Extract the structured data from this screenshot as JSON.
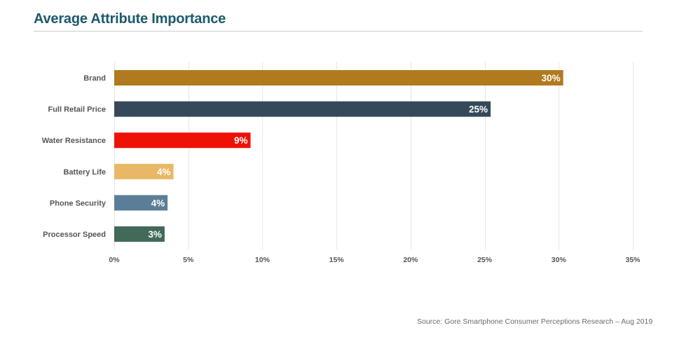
{
  "header": {
    "title": "Average Attribute Importance"
  },
  "source": "Source: Gore Smartphone Consumer Perceptions Research – Aug 2019",
  "chart_data": {
    "type": "bar",
    "orientation": "horizontal",
    "title": "Average Attribute Importance",
    "xlabel": "",
    "ylabel": "",
    "xlim": [
      0,
      35
    ],
    "grid": true,
    "legend": "none",
    "categories": [
      "Brand",
      "Full Retail Price",
      "Water Resistance",
      "Battery Life",
      "Phone Security",
      "Processor Speed"
    ],
    "values": [
      30.3,
      25.4,
      9.2,
      4.0,
      3.6,
      3.4
    ],
    "data_labels": [
      "30%",
      "25%",
      "9%",
      "4%",
      "4%",
      "3%"
    ],
    "colors": [
      "#b07a1f",
      "#35495a",
      "#ee1106",
      "#e8b865",
      "#5b7e98",
      "#416a58"
    ],
    "ticks": [
      0,
      5,
      10,
      15,
      20,
      25,
      30,
      35
    ],
    "tick_labels": [
      "0%",
      "5%",
      "10%",
      "15%",
      "20%",
      "25%",
      "30%",
      "35%"
    ]
  }
}
